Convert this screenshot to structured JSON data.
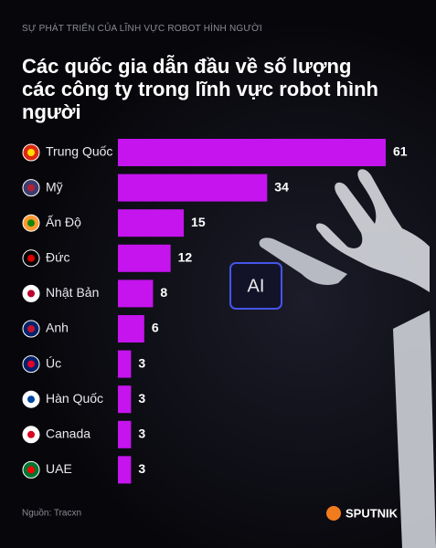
{
  "chart_data": {
    "type": "bar",
    "orientation": "horizontal",
    "subtitle": "SỰ PHÁT TRIỂN CỦA LĨNH VỰC ROBOT HÌNH NGƯỜI",
    "title": "Các quốc gia dẫn đầu về số lượng các công ty trong lĩnh vực robot hình người",
    "categories": [
      "Trung Quốc",
      "Mỹ",
      "Ấn Độ",
      "Đức",
      "Nhật Bản",
      "Anh",
      "Úc",
      "Hàn Quốc",
      "Canada",
      "UAE"
    ],
    "values": [
      61,
      34,
      15,
      12,
      8,
      6,
      3,
      3,
      3,
      3
    ],
    "color": "#c514ee",
    "annotation": "AI",
    "source": "Nguồn: Tracxn",
    "brand": "SPUTNIK"
  }
}
